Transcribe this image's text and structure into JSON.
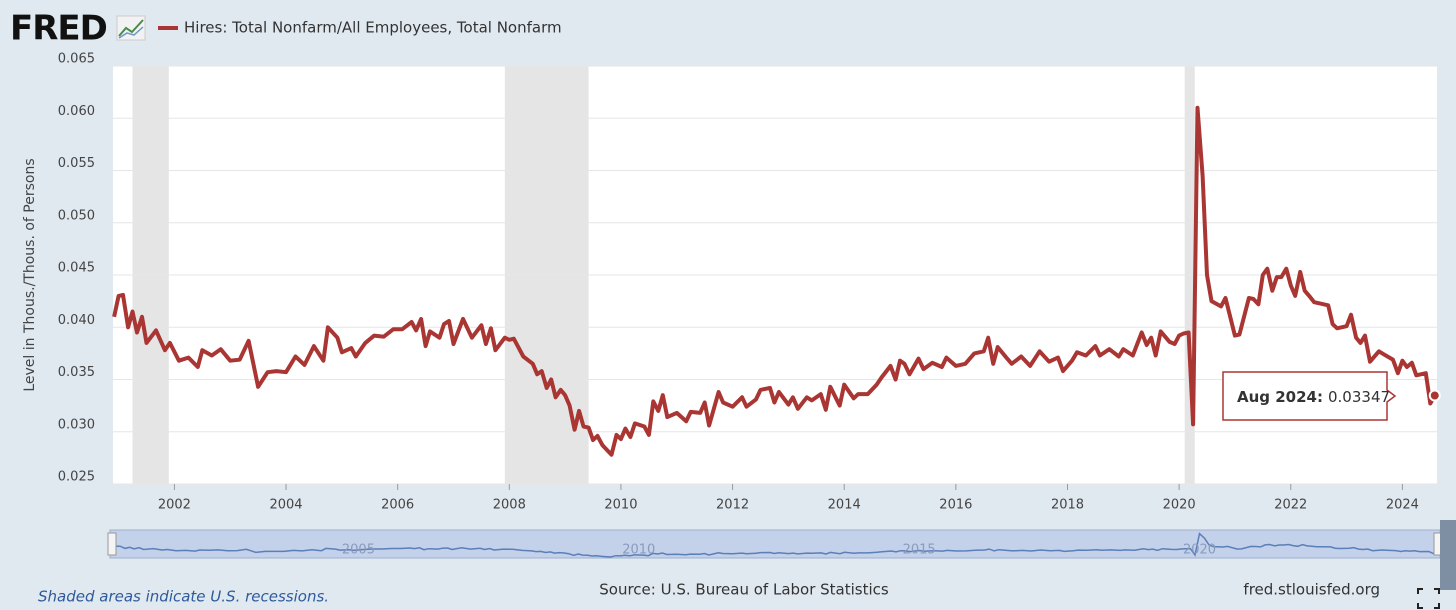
{
  "chart_data": {
    "type": "line",
    "logo": "FRED",
    "y_label": "Level in Thous./Thous. of Persons",
    "source": "Source: U.S. Bureau of Labor Statistics",
    "site": "fred.stlouisfed.org",
    "recession_note": "Shaded areas indicate U.S. recessions.",
    "recessions": [
      [
        2001.25,
        2001.9
      ],
      [
        2007.92,
        2009.42
      ],
      [
        2020.1,
        2020.28
      ]
    ],
    "xlim": [
      2000.9,
      2024.62
    ],
    "ylim": [
      0.025,
      0.065
    ],
    "xticks": [
      2002,
      2004,
      2006,
      2008,
      2010,
      2012,
      2014,
      2016,
      2018,
      2020,
      2022,
      2024
    ],
    "yticks": [
      0.025,
      {
        "value": 0.03,
        "label": "0.030"
      },
      0.035,
      {
        "value": 0.04,
        "label": "0.040"
      },
      0.045,
      {
        "value": 0.05,
        "label": "0.050"
      },
      0.055,
      {
        "value": 0.06,
        "label": "0.060"
      },
      0.065
    ],
    "grid": true,
    "navigator_ticks": [
      2005,
      2010,
      2015,
      2020
    ],
    "tooltip": {
      "label": "Aug 2024:",
      "value": 0.03347
    },
    "x": [
      2000.92,
      2001.0,
      2001.08,
      2001.17,
      2001.25,
      2001.33,
      2001.42,
      2001.5,
      2001.67,
      2001.83,
      2001.92,
      2002.08,
      2002.25,
      2002.42,
      2002.5,
      2002.67,
      2002.83,
      2003.0,
      2003.17,
      2003.33,
      2003.5,
      2003.67,
      2003.83,
      2004.0,
      2004.17,
      2004.33,
      2004.5,
      2004.67,
      2004.75,
      2004.92,
      2005.0,
      2005.17,
      2005.25,
      2005.42,
      2005.58,
      2005.75,
      2005.92,
      2006.08,
      2006.25,
      2006.33,
      2006.42,
      2006.5,
      2006.58,
      2006.75,
      2006.83,
      2006.92,
      2007.0,
      2007.17,
      2007.33,
      2007.5,
      2007.58,
      2007.67,
      2007.75,
      2007.92,
      2008.0,
      2008.08,
      2008.25,
      2008.42,
      2008.5,
      2008.58,
      2008.67,
      2008.75,
      2008.83,
      2008.92,
      2009.0,
      2009.08,
      2009.17,
      2009.25,
      2009.33,
      2009.42,
      2009.5,
      2009.58,
      2009.67,
      2009.83,
      2009.92,
      2010.0,
      2010.08,
      2010.17,
      2010.25,
      2010.42,
      2010.5,
      2010.58,
      2010.67,
      2010.75,
      2010.83,
      2011.0,
      2011.17,
      2011.25,
      2011.42,
      2011.5,
      2011.58,
      2011.75,
      2011.83,
      2012.0,
      2012.17,
      2012.25,
      2012.42,
      2012.5,
      2012.67,
      2012.75,
      2012.83,
      2013.0,
      2013.08,
      2013.17,
      2013.33,
      2013.42,
      2013.58,
      2013.67,
      2013.75,
      2013.92,
      2014.0,
      2014.17,
      2014.25,
      2014.42,
      2014.58,
      2014.67,
      2014.83,
      2014.92,
      2015.0,
      2015.08,
      2015.17,
      2015.33,
      2015.42,
      2015.58,
      2015.75,
      2015.83,
      2016.0,
      2016.17,
      2016.33,
      2016.5,
      2016.58,
      2016.67,
      2016.75,
      2016.92,
      2017.0,
      2017.17,
      2017.33,
      2017.5,
      2017.67,
      2017.83,
      2017.92,
      2018.08,
      2018.17,
      2018.33,
      2018.5,
      2018.58,
      2018.75,
      2018.92,
      2019.0,
      2019.17,
      2019.33,
      2019.42,
      2019.5,
      2019.58,
      2019.67,
      2019.83,
      2019.92,
      2020.0,
      2020.08,
      2020.17,
      2020.25,
      2020.33,
      2020.42,
      2020.5,
      2020.58,
      2020.75,
      2020.83,
      2021.0,
      2021.08,
      2021.25,
      2021.33,
      2021.42,
      2021.5,
      2021.58,
      2021.67,
      2021.75,
      2021.83,
      2021.92,
      2022.0,
      2022.08,
      2022.17,
      2022.25,
      2022.33,
      2022.42,
      2022.5,
      2022.67,
      2022.75,
      2022.83,
      2023.0,
      2023.08,
      2023.17,
      2023.25,
      2023.33,
      2023.42,
      2023.58,
      2023.67,
      2023.83,
      2023.92,
      2024.0,
      2024.08,
      2024.17,
      2024.25,
      2024.42,
      2024.5,
      2024.58
    ],
    "series": [
      {
        "name": "Hires: Total Nonfarm/All Employees, Total Nonfarm",
        "color": "#aa3634",
        "values": [
          0.041,
          0.043,
          0.0431,
          0.04,
          0.0415,
          0.0395,
          0.041,
          0.0385,
          0.0397,
          0.0378,
          0.0385,
          0.0368,
          0.0371,
          0.0362,
          0.0378,
          0.0373,
          0.0379,
          0.0368,
          0.0369,
          0.0387,
          0.0343,
          0.0357,
          0.0358,
          0.0357,
          0.0372,
          0.0364,
          0.0382,
          0.0368,
          0.04,
          0.039,
          0.0376,
          0.038,
          0.0372,
          0.0385,
          0.0392,
          0.0391,
          0.0398,
          0.0398,
          0.0405,
          0.0397,
          0.0408,
          0.0382,
          0.0396,
          0.039,
          0.0403,
          0.0406,
          0.0384,
          0.0408,
          0.039,
          0.0402,
          0.0384,
          0.0399,
          0.0378,
          0.039,
          0.0388,
          0.0389,
          0.0372,
          0.0365,
          0.0355,
          0.0358,
          0.0342,
          0.035,
          0.0333,
          0.034,
          0.0335,
          0.0325,
          0.0302,
          0.032,
          0.0305,
          0.0304,
          0.0292,
          0.0296,
          0.0287,
          0.0278,
          0.0297,
          0.0293,
          0.0303,
          0.0295,
          0.0308,
          0.0305,
          0.0297,
          0.0329,
          0.032,
          0.0335,
          0.0314,
          0.0318,
          0.031,
          0.0319,
          0.0318,
          0.0328,
          0.0306,
          0.0338,
          0.0328,
          0.0324,
          0.0333,
          0.0324,
          0.0331,
          0.034,
          0.0342,
          0.0328,
          0.0338,
          0.0326,
          0.0333,
          0.0322,
          0.0333,
          0.033,
          0.0336,
          0.0321,
          0.0343,
          0.0325,
          0.0345,
          0.0332,
          0.0336,
          0.0336,
          0.0345,
          0.0352,
          0.0363,
          0.035,
          0.0368,
          0.0365,
          0.0355,
          0.037,
          0.036,
          0.0366,
          0.0362,
          0.0371,
          0.0363,
          0.0365,
          0.0375,
          0.0377,
          0.039,
          0.0365,
          0.0381,
          0.037,
          0.0365,
          0.0372,
          0.0363,
          0.0377,
          0.0367,
          0.0371,
          0.0358,
          0.0368,
          0.0376,
          0.0373,
          0.0382,
          0.0373,
          0.0379,
          0.0372,
          0.0379,
          0.0373,
          0.0395,
          0.0383,
          0.039,
          0.0373,
          0.0396,
          0.0386,
          0.0384,
          0.0392,
          0.0394,
          0.0395,
          0.0307,
          0.061,
          0.0545,
          0.045,
          0.0425,
          0.042,
          0.0428,
          0.0392,
          0.0393,
          0.0428,
          0.0427,
          0.0422,
          0.045,
          0.0456,
          0.0435,
          0.0448,
          0.0448,
          0.0456,
          0.044,
          0.043,
          0.0453,
          0.0435,
          0.043,
          0.0424,
          0.0423,
          0.0421,
          0.0403,
          0.0399,
          0.0401,
          0.0412,
          0.039,
          0.0385,
          0.0392,
          0.0367,
          0.0377,
          0.0374,
          0.0369,
          0.0356,
          0.0368,
          0.0362,
          0.0366,
          0.0354,
          0.0356,
          0.0327,
          0.03347
        ]
      }
    ]
  }
}
